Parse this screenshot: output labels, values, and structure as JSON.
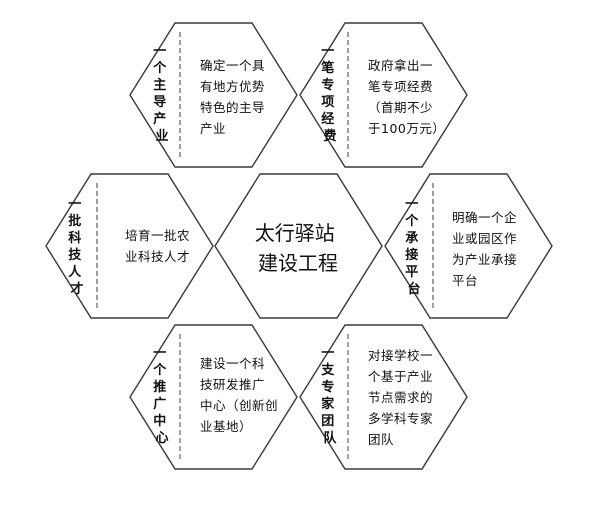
{
  "center": {
    "line1": "太行驿站",
    "line2": "建设工程"
  },
  "cells": [
    {
      "id": "top-left",
      "title": [
        "一",
        "个",
        "主",
        "导",
        "产",
        "业"
      ],
      "desc": [
        "确定一个具",
        "有地方优势",
        "特色的主导",
        "产业"
      ]
    },
    {
      "id": "top-right",
      "title": [
        "一",
        "笔",
        "专",
        "项",
        "经",
        "费"
      ],
      "desc": [
        "政府拿出一",
        "笔专项经费",
        "（首期不少",
        "于100万元）"
      ]
    },
    {
      "id": "mid-left",
      "title": [
        "一",
        "批",
        "科",
        "技",
        "人",
        "才"
      ],
      "desc": [
        "培育一批农",
        "业科技人才"
      ]
    },
    {
      "id": "mid-right",
      "title": [
        "一",
        "个",
        "承",
        "接",
        "平",
        "台"
      ],
      "desc": [
        "明确一个企",
        "业或园区作",
        "为产业承接",
        "平台"
      ]
    },
    {
      "id": "bottom-left",
      "title": [
        "一",
        "个",
        "推",
        "广",
        "中",
        "心"
      ],
      "desc": [
        "建设一个科",
        "技研发推广",
        "中心（创新创",
        "业基地）"
      ]
    },
    {
      "id": "bottom-right",
      "title": [
        "一",
        "支",
        "专",
        "家",
        "团",
        "队"
      ],
      "desc": [
        "对接学校一",
        "个基于产业",
        "节点需求的",
        "多学科专家",
        "团队"
      ]
    }
  ]
}
